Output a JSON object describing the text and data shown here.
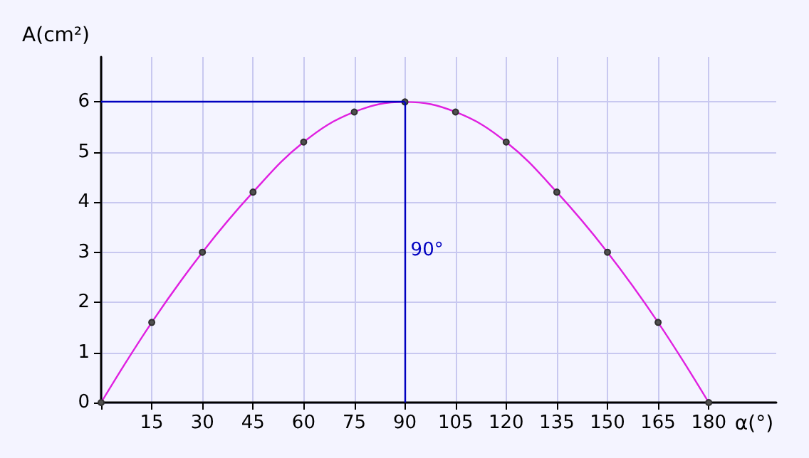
{
  "chart_data": {
    "type": "line",
    "xlabel": "α(°)",
    "ylabel": "A(cm²)",
    "x": [
      0,
      15,
      30,
      45,
      60,
      75,
      90,
      105,
      120,
      135,
      150,
      165,
      180
    ],
    "series": [
      {
        "color": "#e020e0",
        "values": [
          0,
          1.6,
          3,
          4.2,
          5.2,
          5.8,
          6,
          5.8,
          5.2,
          4.2,
          3,
          1.6,
          0
        ]
      }
    ],
    "xlim": [
      0,
      200
    ],
    "ylim": [
      0,
      6.9
    ],
    "xticks": [
      {
        "value": 0,
        "label": null
      },
      15,
      30,
      45,
      60,
      75,
      90,
      105,
      120,
      135,
      150,
      165,
      180
    ],
    "yticks": [
      0,
      1,
      2,
      3,
      4,
      5,
      6
    ],
    "ref_lines": [
      {
        "axis": "y",
        "value": 6,
        "color": "#0000c0"
      },
      {
        "axis": "x",
        "value": 90,
        "label": "90°",
        "color": "#0000c0"
      }
    ],
    "grid": true,
    "marker": "circle",
    "line_style": "solid"
  }
}
